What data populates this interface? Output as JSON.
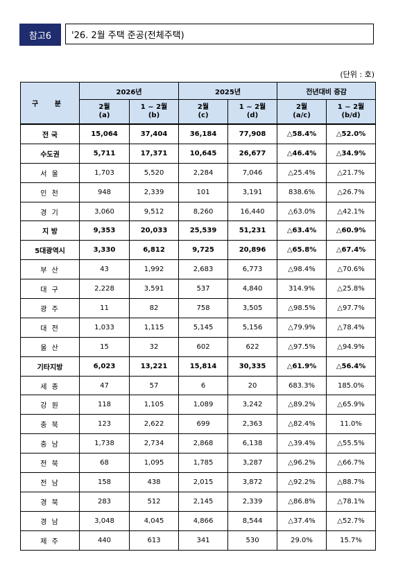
{
  "header": {
    "tag": "참고6",
    "title": "'26. 2월  주택 준공(전체주택)"
  },
  "unit": "(단위 : 호)",
  "table": {
    "corner": "구 분",
    "groups": [
      "2026년",
      "2025년",
      "전년대비 증감"
    ],
    "subheaders": [
      [
        "2월",
        "(a)"
      ],
      [
        "1 ~ 2월",
        "(b)"
      ],
      [
        "2월",
        "(c)"
      ],
      [
        "1 ~ 2월",
        "(d)"
      ],
      [
        "2월",
        "(a/c)"
      ],
      [
        "1 ~ 2월",
        "(b/d)"
      ]
    ],
    "rows": [
      {
        "name": "전 국",
        "bold": true,
        "values": [
          "15,064",
          "37,404",
          "36,184",
          "77,908",
          "△58.4%",
          "△52.0%"
        ]
      },
      {
        "name": "수도권",
        "bold": true,
        "values": [
          "5,711",
          "17,371",
          "10,645",
          "26,677",
          "△46.4%",
          "△34.9%"
        ]
      },
      {
        "name": "서 울",
        "bold": false,
        "values": [
          "1,703",
          "5,520",
          "2,284",
          "7,046",
          "△25.4%",
          "△21.7%"
        ]
      },
      {
        "name": "인 천",
        "bold": false,
        "values": [
          "948",
          "2,339",
          "101",
          "3,191",
          "838.6%",
          "△26.7%"
        ]
      },
      {
        "name": "경 기",
        "bold": false,
        "values": [
          "3,060",
          "9,512",
          "8,260",
          "16,440",
          "△63.0%",
          "△42.1%"
        ]
      },
      {
        "name": "지  방",
        "bold": true,
        "values": [
          "9,353",
          "20,033",
          "25,539",
          "51,231",
          "△63.4%",
          "△60.9%"
        ]
      },
      {
        "name": "5대광역시",
        "bold": true,
        "values": [
          "3,330",
          "6,812",
          "9,725",
          "20,896",
          "△65.8%",
          "△67.4%"
        ]
      },
      {
        "name": "부 산",
        "bold": false,
        "values": [
          "43",
          "1,992",
          "2,683",
          "6,773",
          "△98.4%",
          "△70.6%"
        ]
      },
      {
        "name": "대 구",
        "bold": false,
        "values": [
          "2,228",
          "3,591",
          "537",
          "4,840",
          "314.9%",
          "△25.8%"
        ]
      },
      {
        "name": "광 주",
        "bold": false,
        "values": [
          "11",
          "82",
          "758",
          "3,505",
          "△98.5%",
          "△97.7%"
        ]
      },
      {
        "name": "대 전",
        "bold": false,
        "values": [
          "1,033",
          "1,115",
          "5,145",
          "5,156",
          "△79.9%",
          "△78.4%"
        ]
      },
      {
        "name": "울 산",
        "bold": false,
        "values": [
          "15",
          "32",
          "602",
          "622",
          "△97.5%",
          "△94.9%"
        ]
      },
      {
        "name": "기타지방",
        "bold": true,
        "values": [
          "6,023",
          "13,221",
          "15,814",
          "30,335",
          "△61.9%",
          "△56.4%"
        ]
      },
      {
        "name": "세 종",
        "bold": false,
        "values": [
          "47",
          "57",
          "6",
          "20",
          "683.3%",
          "185.0%"
        ]
      },
      {
        "name": "강 원",
        "bold": false,
        "values": [
          "118",
          "1,105",
          "1,089",
          "3,242",
          "△89.2%",
          "△65.9%"
        ]
      },
      {
        "name": "충 북",
        "bold": false,
        "values": [
          "123",
          "2,622",
          "699",
          "2,363",
          "△82.4%",
          "11.0%"
        ]
      },
      {
        "name": "충 남",
        "bold": false,
        "values": [
          "1,738",
          "2,734",
          "2,868",
          "6,138",
          "△39.4%",
          "△55.5%"
        ]
      },
      {
        "name": "전 북",
        "bold": false,
        "values": [
          "68",
          "1,095",
          "1,785",
          "3,287",
          "△96.2%",
          "△66.7%"
        ]
      },
      {
        "name": "전 남",
        "bold": false,
        "values": [
          "158",
          "438",
          "2,015",
          "3,872",
          "△92.2%",
          "△88.7%"
        ]
      },
      {
        "name": "경 북",
        "bold": false,
        "values": [
          "283",
          "512",
          "2,145",
          "2,339",
          "△86.8%",
          "△78.1%"
        ]
      },
      {
        "name": "경 남",
        "bold": false,
        "values": [
          "3,048",
          "4,045",
          "4,866",
          "8,544",
          "△37.4%",
          "△52.7%"
        ]
      },
      {
        "name": "제 주",
        "bold": false,
        "values": [
          "440",
          "613",
          "341",
          "530",
          "29.0%",
          "15.7%"
        ]
      }
    ]
  }
}
